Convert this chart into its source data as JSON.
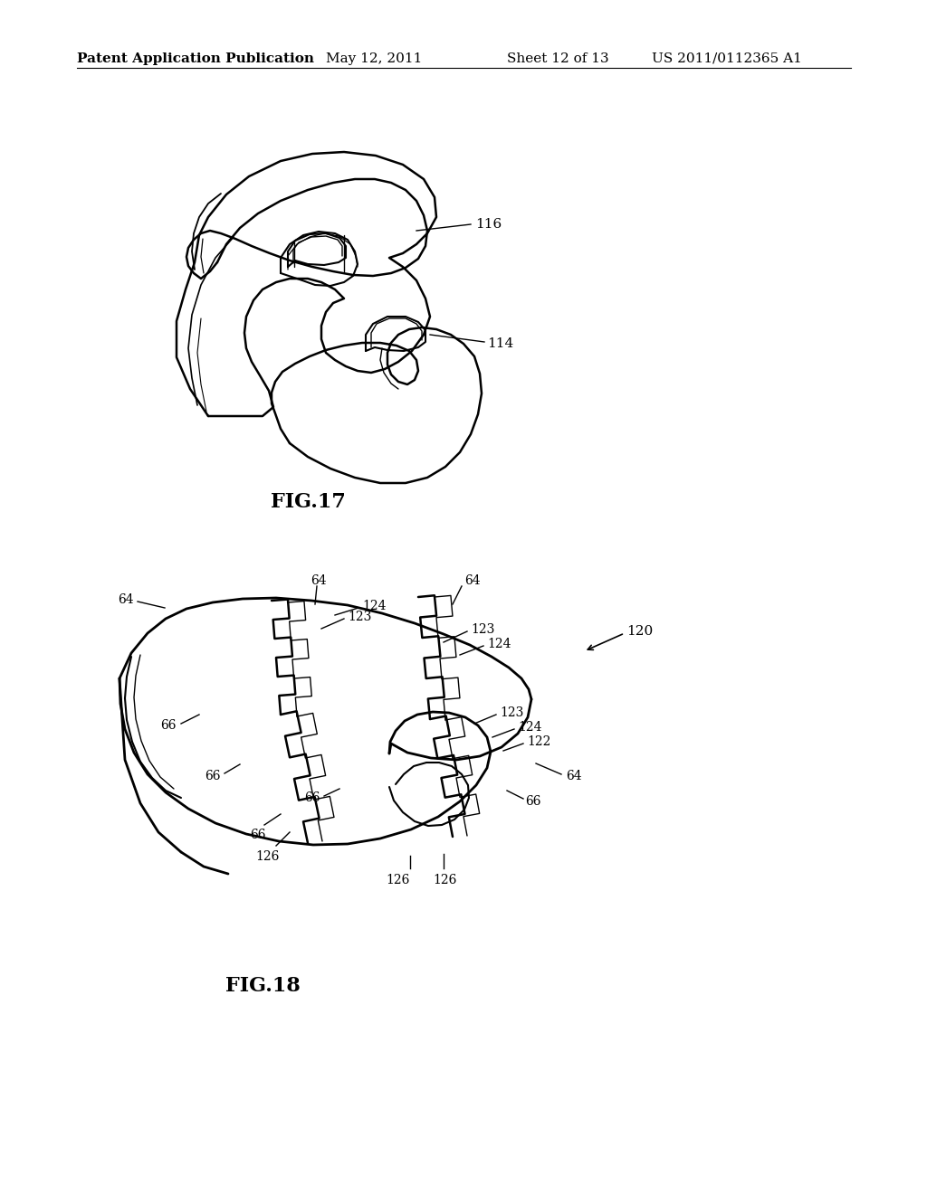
{
  "background_color": "#ffffff",
  "header_text": "Patent Application Publication",
  "header_date": "May 12, 2011",
  "header_sheet": "Sheet 12 of 13",
  "header_patent": "US 2011/0112365 A1",
  "line_color": "#000000",
  "annotation_fontsize": 10,
  "label_fontsize": 15
}
